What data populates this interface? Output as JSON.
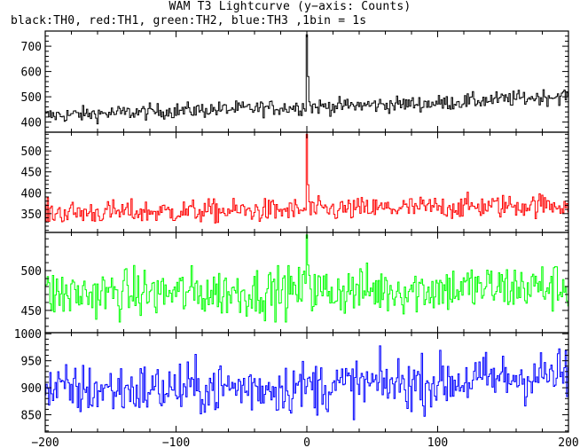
{
  "title": "WAM T3 Lightcurve (y−axis: Counts)",
  "subtitle": "black:TH0, red:TH1, green:TH2, blue:TH3 ,1bin = 1s",
  "chart_data": {
    "type": "line",
    "x_range": [
      -200,
      200
    ],
    "x_ticks": [
      -200,
      -100,
      0,
      100,
      200
    ],
    "x_tick_labels": [
      "−200",
      "−100",
      "0",
      "100",
      "200"
    ],
    "bin_seconds": 1,
    "grid": false,
    "panels": [
      {
        "name": "TH0",
        "color": "#000000",
        "ylim": [
          360,
          760
        ],
        "y_ticks": [
          400,
          500,
          600,
          700
        ],
        "baseline": {
          "x": [
            -200,
            -100,
            0,
            100,
            200
          ],
          "y": [
            425,
            445,
            460,
            475,
            505
          ]
        },
        "noise_amplitude": 22,
        "burst": {
          "peak_x": 0,
          "peak_y": 745,
          "post_peak_y": 680,
          "decay_to_x": 2
        }
      },
      {
        "name": "TH1",
        "color": "#ff0000",
        "ylim": [
          305,
          545
        ],
        "y_ticks": [
          350,
          400,
          450,
          500
        ],
        "baseline": {
          "x": [
            -200,
            -100,
            0,
            100,
            200
          ],
          "y": [
            352,
            355,
            358,
            365,
            372
          ]
        },
        "noise_amplitude": 20,
        "burst": {
          "peak_x": 0,
          "peak_y": 540,
          "post_peak_y": 460,
          "decay_to_x": 2
        }
      },
      {
        "name": "TH2",
        "color": "#00ff00",
        "ylim": [
          422,
          548
        ],
        "y_ticks": [
          450,
          500
        ],
        "baseline": {
          "x": [
            -200,
            -100,
            0,
            100,
            200
          ],
          "y": [
            470,
            472,
            474,
            477,
            480
          ]
        },
        "noise_amplitude": 22,
        "burst": {
          "peak_x": 0,
          "peak_y": 545,
          "post_peak_y": 520,
          "decay_to_x": 2
        }
      },
      {
        "name": "TH3",
        "color": "#0000ff",
        "ylim": [
          818,
          1002
        ],
        "y_ticks": [
          850,
          900,
          950,
          1000
        ],
        "baseline": {
          "x": [
            -200,
            -100,
            0,
            100,
            200
          ],
          "y": [
            895,
            898,
            902,
            910,
            925
          ]
        },
        "noise_amplitude": 35,
        "burst": null
      }
    ]
  }
}
